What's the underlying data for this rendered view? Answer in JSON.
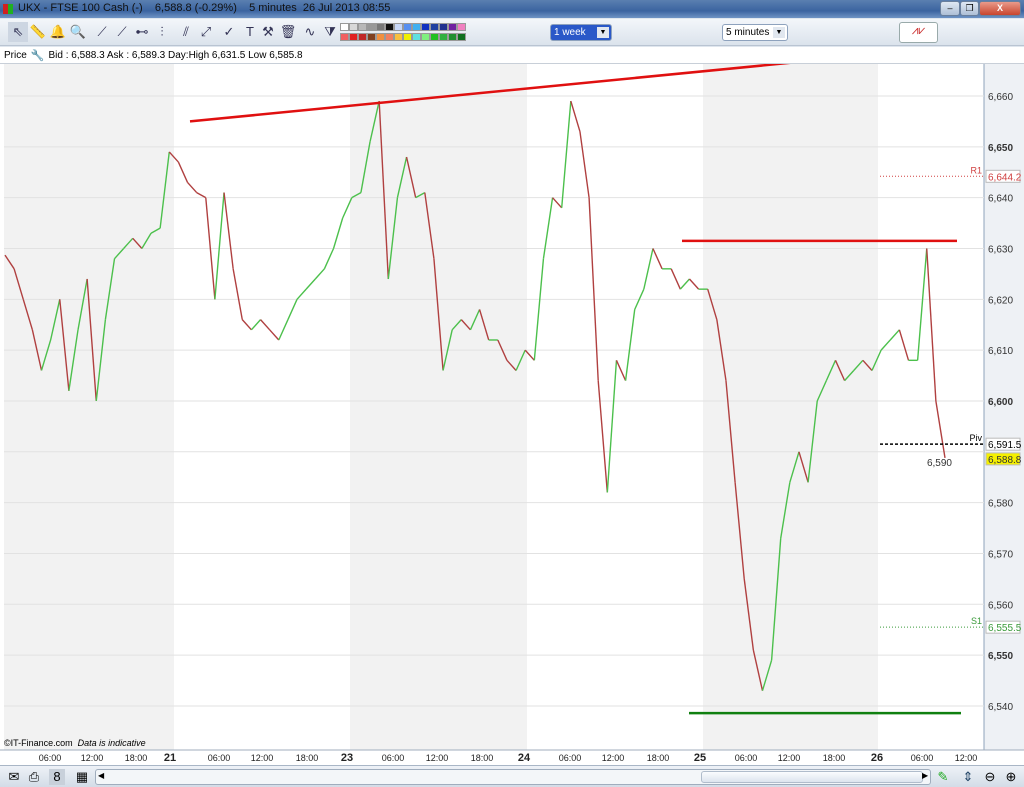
{
  "window": {
    "title": "UKX - FTSE 100 Cash (-)    6,588.8 (-0.29%)    5 minutes  26 Jul 2013 08:55",
    "minimize": "–",
    "restore": "❐",
    "close": "X"
  },
  "toolbar": {
    "tools": [
      {
        "icon": "pointer-icon",
        "glyph": "⇖"
      },
      {
        "icon": "ruler-icon",
        "glyph": "📏"
      },
      {
        "icon": "alert-bell-icon",
        "glyph": "🔔"
      },
      {
        "icon": "magnifier-icon",
        "glyph": "🔍"
      },
      {
        "icon": "line-segment-icon",
        "glyph": "⟋"
      },
      {
        "icon": "trend-line-icon",
        "glyph": "⟋"
      },
      {
        "icon": "horizontal-line-icon",
        "glyph": "⊷"
      },
      {
        "icon": "vertical-line-icon",
        "glyph": "⫶"
      },
      {
        "icon": "parallel-lines-icon",
        "glyph": "⫽"
      },
      {
        "icon": "fibonacci-icon",
        "glyph": "⤢"
      },
      {
        "icon": "indicator-icon",
        "glyph": "✓"
      },
      {
        "icon": "text-icon",
        "glyph": "T"
      },
      {
        "icon": "tools-icon",
        "glyph": "⚒"
      },
      {
        "icon": "trash-icon",
        "glyph": "🗑"
      },
      {
        "icon": "wave-pattern-icon",
        "glyph": "∿"
      },
      {
        "icon": "triangle-pattern-icon",
        "glyph": "⧩"
      }
    ],
    "palette_top": [
      "#ffffff",
      "#d8d8d8",
      "#b8b8b8",
      "#989898",
      "#787878",
      "#101010",
      "#c8d8f8",
      "#5890f0",
      "#40b0f0",
      "#1030c0",
      "#2040a0",
      "#203090",
      "#7020a0",
      "#f080c0"
    ],
    "palette_bottom": [
      "#f06060",
      "#e02020",
      "#c02828",
      "#804020",
      "#f09040",
      "#f08060",
      "#f8c040",
      "#f0f000",
      "#60e0e0",
      "#80f080",
      "#20c020",
      "#30b040",
      "#209030",
      "#107020"
    ],
    "period_select": "1 week",
    "interval_select": "5 minutes",
    "indicators_button": "indicators-icon"
  },
  "infobar": {
    "label": "Price",
    "quote": "Bid : 6,588.3 Ask : 6,589.3 Day:High 6,631.5 Low 6,585.8"
  },
  "chart": {
    "copyright": "©IT-Finance.com",
    "disclaimer": "Data is indicative",
    "y_ticks": [
      "6,660",
      "6,650",
      "6,640",
      "6,630",
      "6,620",
      "6,610",
      "6,600",
      "6,590",
      "6,580",
      "6,570",
      "6,560",
      "6,550",
      "6,540"
    ],
    "x_ticks": [
      "06:00",
      "12:00",
      "18:00",
      "21",
      "06:00",
      "12:00",
      "18:00",
      "23",
      "06:00",
      "12:00",
      "18:00",
      "24",
      "06:00",
      "12:00",
      "18:00",
      "25",
      "06:00",
      "12:00",
      "18:00",
      "26",
      "06:00",
      "12:00"
    ],
    "colors": {
      "up": "#4cc04c",
      "down": "#b04040",
      "trend": "#e01010",
      "support": "#108010",
      "current": "#f5f000"
    },
    "levels": {
      "r1": {
        "label": "R1",
        "value": "6,644.2"
      },
      "piv": {
        "label": "Piv",
        "value": "6,591.5"
      },
      "s1": {
        "label": "S1",
        "value": "6,555.5"
      },
      "last": {
        "value": "6,588.8"
      }
    }
  },
  "chart_data": {
    "type": "line",
    "ylim": [
      6535,
      6671
    ],
    "y_ticks": [
      6660,
      6650,
      6640,
      6630,
      6620,
      6610,
      6600,
      6590,
      6580,
      6570,
      6560,
      6550,
      6540
    ],
    "values": [
      6628.7,
      6626,
      6620,
      6614,
      6606,
      6612,
      6620,
      6602,
      6614,
      6624,
      6600,
      6616,
      6628,
      6630,
      6632,
      6630,
      6633,
      6634,
      6649,
      6647,
      6643,
      6641,
      6640,
      6620,
      6641,
      6626,
      6616,
      6614,
      6616,
      6614,
      6612,
      6616,
      6620,
      6622,
      6624,
      6626,
      6630,
      6636,
      6640,
      6641,
      6651,
      6659,
      6624,
      6640,
      6648,
      6640,
      6641,
      6628,
      6606,
      6614,
      6616,
      6614,
      6618,
      6612,
      6612,
      6608,
      6606,
      6610,
      6608,
      6628,
      6640,
      6638,
      6659,
      6653,
      6640,
      6604,
      6582,
      6608,
      6604,
      6618,
      6622,
      6630,
      6626,
      6626,
      6622,
      6624,
      6622,
      6622,
      6616,
      6604,
      6584,
      6565,
      6551,
      6543,
      6549,
      6573,
      6584,
      6590,
      6584,
      6600,
      6604,
      6608,
      6604,
      6606,
      6608,
      6606,
      6610,
      6612,
      6614,
      6608,
      6608,
      6630,
      6600,
      6588.8
    ],
    "resistance_trendline": {
      "from": 6655,
      "to": 6667.3
    },
    "resistance_level": 6631.5,
    "support_level": 6538.6,
    "r1": 6644.2,
    "pivot": 6591.5,
    "s1": 6555.5,
    "last": 6588.8
  },
  "bottombar": {
    "icons": [
      "email-icon",
      "print-icon",
      "link-icon",
      "settings-icon"
    ],
    "right_icons": [
      "draw-icon",
      "autoscale-icon",
      "zoom-out-icon",
      "zoom-in-icon"
    ]
  }
}
